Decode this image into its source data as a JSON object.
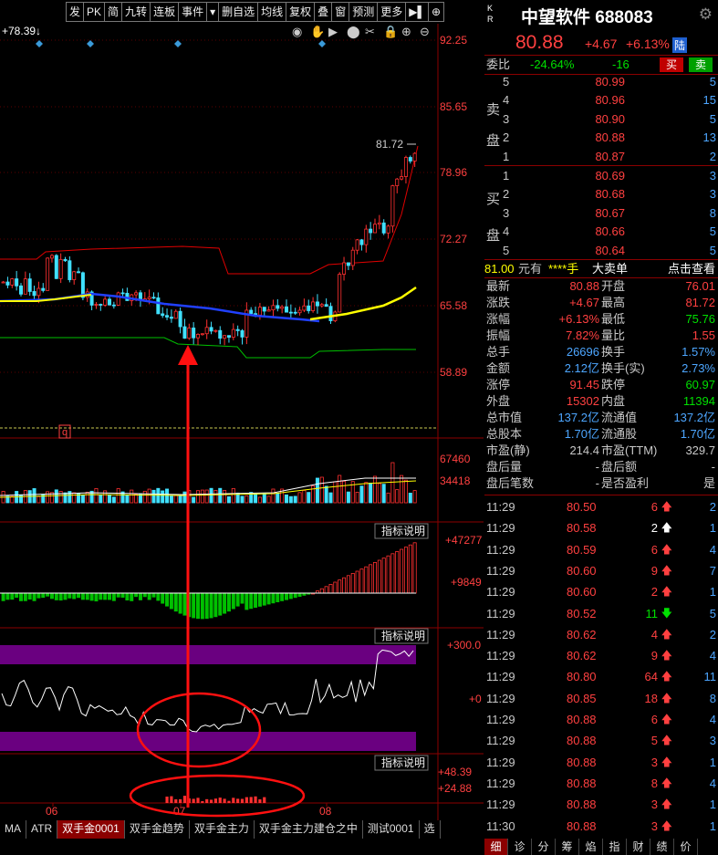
{
  "toolbar": [
    "发",
    "PK",
    "简",
    "九转",
    "连板",
    "事件",
    "▾",
    "删自选",
    "均线",
    "复权",
    "叠",
    "窗",
    "预测",
    "更多",
    "▶▌",
    "⊕"
  ],
  "chart": {
    "top_label": "+78.39",
    "y_labels": [
      "92.25",
      "85.65",
      "78.96",
      "72.27",
      "65.58",
      "58.89"
    ],
    "high_label": "81.72",
    "marker": "q",
    "vol_labels": [
      "67460",
      "34418"
    ],
    "macd_labels": [
      "+47277",
      "+9849"
    ],
    "cci_labels": [
      "+300.0",
      "+0"
    ],
    "bottom_labels": [
      "+48.39",
      "+24.88"
    ],
    "indicator_btn": "指标说明",
    "months": [
      "06",
      "07",
      "08"
    ]
  },
  "chart_data": {
    "type": "candlestick",
    "ylim": [
      58.89,
      92.25
    ],
    "high": 81.72
  },
  "tabs": [
    "MA",
    "ATR",
    "双手金0001",
    "双手金趋势",
    "双手金主力",
    "双手金主力建仓之中",
    "测试0001",
    "选"
  ],
  "stock": {
    "name": "中望软件",
    "code": "688083",
    "price": "80.88",
    "change": "+4.67",
    "pct": "+6.13%",
    "exch": "陆",
    "kr": [
      "K",
      "R"
    ]
  },
  "weibi": {
    "label": "委比",
    "pct": "-24.64%",
    "val": "-16",
    "buy": "买",
    "sell": "卖"
  },
  "sell_side": {
    "label": [
      "卖",
      "盘"
    ],
    "rows": [
      [
        "5",
        "80.99",
        "5"
      ],
      [
        "4",
        "80.96",
        "15"
      ],
      [
        "3",
        "80.90",
        "5"
      ],
      [
        "2",
        "80.88",
        "13"
      ],
      [
        "1",
        "80.87",
        "2"
      ]
    ]
  },
  "buy_side": {
    "label": [
      "买",
      "盘"
    ],
    "rows": [
      [
        "1",
        "80.69",
        "3"
      ],
      [
        "2",
        "80.68",
        "3"
      ],
      [
        "3",
        "80.67",
        "8"
      ],
      [
        "4",
        "80.66",
        "5"
      ],
      [
        "5",
        "80.64",
        "5"
      ]
    ]
  },
  "bigorder": {
    "price": "81.00",
    "unit": "元有",
    "hands": "****手",
    "type": "大卖单",
    "link": "点击查看"
  },
  "quote": [
    [
      "最新",
      "80.88",
      "开盘",
      "76.01"
    ],
    [
      "涨跌",
      "+4.67",
      "最高",
      "81.72"
    ],
    [
      "涨幅",
      "+6.13%",
      "最低",
      "75.76"
    ],
    [
      "振幅",
      "7.82%",
      "量比",
      "1.55"
    ],
    [
      "总手",
      "26696",
      "换手",
      "1.57%"
    ],
    [
      "金额",
      "2.12亿",
      "换手(实)",
      "2.73%"
    ],
    [
      "涨停",
      "91.45",
      "跌停",
      "60.97"
    ],
    [
      "外盘",
      "15302",
      "内盘",
      "11394"
    ],
    [
      "总市值",
      "137.2亿",
      "流通值",
      "137.2亿"
    ],
    [
      "总股本",
      "1.70亿",
      "流通股",
      "1.70亿"
    ],
    [
      "市盈(静)",
      "214.4",
      "市盈(TTM)",
      "329.7"
    ],
    [
      "盘后量",
      "-",
      "盘后额",
      "-"
    ],
    [
      "盘后笔数",
      "-",
      "是否盈利",
      "是"
    ]
  ],
  "ticks": [
    [
      "11:29",
      "80.50",
      "6",
      "up",
      "2"
    ],
    [
      "11:29",
      "80.58",
      "2",
      "upw",
      "1"
    ],
    [
      "11:29",
      "80.59",
      "6",
      "up",
      "4"
    ],
    [
      "11:29",
      "80.60",
      "9",
      "up",
      "7"
    ],
    [
      "11:29",
      "80.60",
      "2",
      "up",
      "1"
    ],
    [
      "11:29",
      "80.52",
      "11",
      "down",
      "5"
    ],
    [
      "11:29",
      "80.62",
      "4",
      "up",
      "2"
    ],
    [
      "11:29",
      "80.62",
      "9",
      "up",
      "4"
    ],
    [
      "11:29",
      "80.80",
      "64",
      "up",
      "11"
    ],
    [
      "11:29",
      "80.85",
      "18",
      "up",
      "8"
    ],
    [
      "11:29",
      "80.88",
      "6",
      "up",
      "4"
    ],
    [
      "11:29",
      "80.88",
      "5",
      "up",
      "3"
    ],
    [
      "11:29",
      "80.88",
      "3",
      "up",
      "1"
    ],
    [
      "11:29",
      "80.88",
      "8",
      "up",
      "4"
    ],
    [
      "11:29",
      "80.88",
      "3",
      "up",
      "1"
    ],
    [
      "11:30",
      "80.88",
      "3",
      "up",
      "1"
    ]
  ],
  "bottom_tabs": [
    "细",
    "诊",
    "分",
    "筹",
    "焰",
    "指",
    "财",
    "绩",
    "价"
  ]
}
